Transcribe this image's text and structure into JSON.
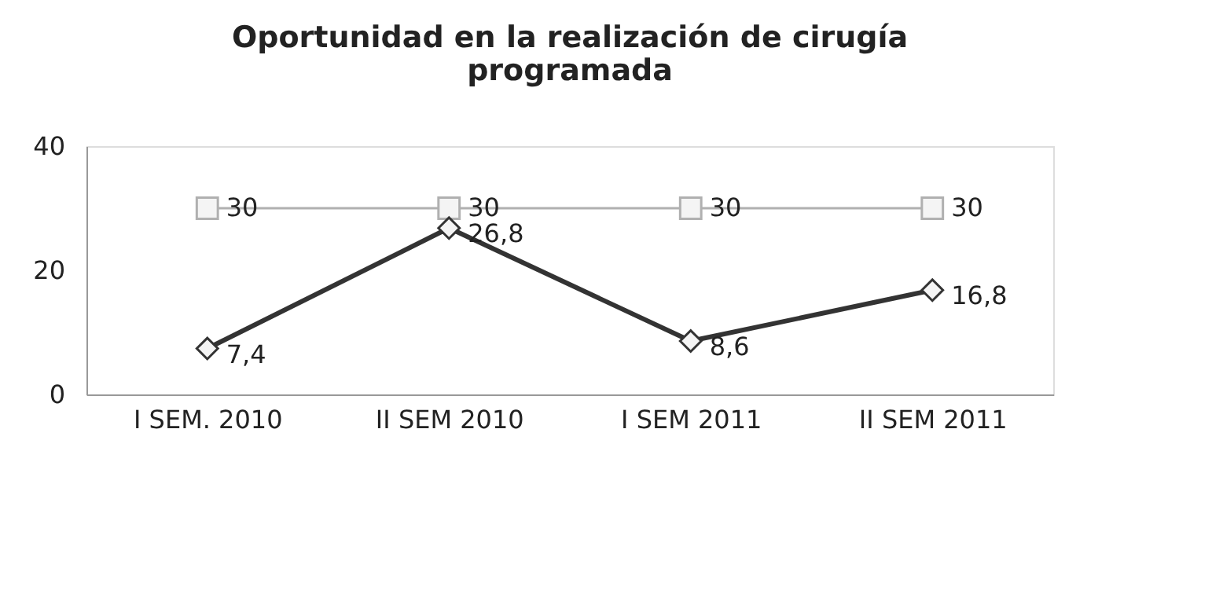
{
  "chart_data": {
    "type": "line",
    "title": "Oportunidad en la realización de cirugía\nprogramada",
    "categories": [
      "I SEM. 2010",
      "II SEM 2010",
      "I SEM 2011",
      "II SEM 2011"
    ],
    "series": [
      {
        "color": "#b0b0b0",
        "marker": "square",
        "values": [
          30,
          30,
          30,
          30
        ],
        "value_labels": [
          "30",
          "30",
          "30",
          "30"
        ]
      },
      {
        "color": "#333333",
        "marker": "diamond",
        "values": [
          7.4,
          26.8,
          8.6,
          16.8
        ],
        "value_labels": [
          "7,4",
          "26,8",
          "8,6",
          "16,8"
        ]
      }
    ],
    "ylim": [
      0,
      40
    ],
    "yticks": [
      0,
      20,
      40
    ]
  }
}
